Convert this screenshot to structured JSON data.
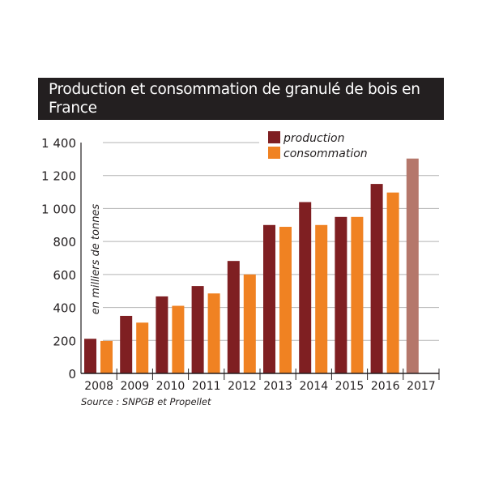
{
  "chart_data": {
    "type": "bar",
    "title": "Production et consommation de granulé de bois en France",
    "ylabel": "en milliers de tonnes",
    "xlabel": "",
    "ylim": [
      0,
      1400
    ],
    "yticks": [
      0,
      200,
      400,
      600,
      800,
      1000,
      1200,
      1400
    ],
    "ytick_labels": [
      "0",
      "200",
      "400",
      "600",
      "800",
      "1 000",
      "1 200",
      "1 400"
    ],
    "grid": true,
    "legend_position": "top-right",
    "categories": [
      "2008",
      "2009",
      "2010",
      "2011",
      "2012",
      "2013",
      "2014",
      "2015",
      "2016",
      "2017"
    ],
    "series": [
      {
        "name": "production",
        "color": "#7f1f22",
        "values": [
          210,
          349,
          467,
          530,
          682,
          900,
          1039,
          949,
          1149,
          1303
        ]
      },
      {
        "name": "consommation",
        "color": "#f08222",
        "values": [
          197,
          308,
          410,
          485,
          600,
          889,
          900,
          949,
          1097,
          null
        ]
      }
    ],
    "highlight_color": "#b5776b",
    "source": "Source : SNPGB et Propellet"
  }
}
